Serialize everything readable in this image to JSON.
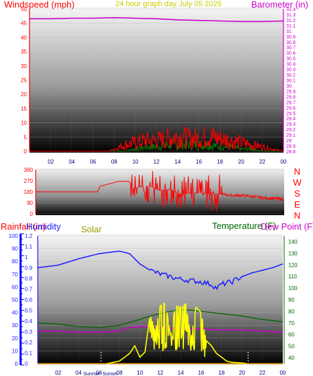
{
  "page_title": "24 hour graph day  July 05 2025",
  "colors": {
    "windspeed": "#ff0000",
    "gust": "#008000",
    "barometer": "#cc00cc",
    "title": "#cccc00",
    "direction": "#ff0000",
    "rainfall": "#0000ff",
    "humidity": "#1a1aff",
    "solar": "#ffff00",
    "temperature": "#006600",
    "dewpoint": "#cc00cc",
    "axis_blue": "#0000ff"
  },
  "chart_data": [
    {
      "type": "line",
      "title": "24 hour graph day  July 05 2025",
      "left_label": "Windspeed (mph)",
      "right_label": "Barometer (in)",
      "x_ticks": [
        "02",
        "04",
        "06",
        "08",
        "10",
        "12",
        "14",
        "16",
        "18",
        "20",
        "22",
        "00"
      ],
      "left_ticks": [
        "0",
        "5",
        "10",
        "15",
        "20",
        "25",
        "30",
        "35",
        "40",
        "45",
        "50"
      ],
      "right_ticks": [
        "28.8",
        "28.9",
        "29",
        "29.1",
        "29.2",
        "29.3",
        "29.4",
        "29.5",
        "29.6",
        "29.7",
        "29.8",
        "29.9",
        "30",
        "30.1",
        "30.2",
        "30.3",
        "30.4",
        "30.5",
        "30.6",
        "30.7",
        "30.8",
        "30.9",
        "31",
        "31.1",
        "31.2",
        "31.3",
        "31.4"
      ],
      "ylim_left": [
        0,
        50
      ],
      "ylim_right": [
        28.8,
        31.4
      ],
      "series": [
        {
          "name": "Barometer",
          "axis": "right",
          "x": [
            0,
            2,
            4,
            6,
            8,
            10,
            12,
            14,
            16,
            18,
            20,
            22,
            24
          ],
          "values": [
            31.22,
            31.22,
            31.23,
            31.23,
            31.24,
            31.23,
            31.22,
            31.2,
            31.19,
            31.18,
            31.17,
            31.17,
            31.18
          ]
        },
        {
          "name": "Windspeed",
          "axis": "left",
          "x": [
            0,
            7.5,
            8,
            9,
            10,
            11,
            12,
            13,
            14,
            15,
            16,
            17,
            18,
            19,
            20,
            21,
            22,
            23,
            24
          ],
          "values": [
            0,
            0,
            1,
            3,
            4,
            5,
            5,
            6,
            7,
            6,
            6,
            7,
            6,
            5,
            4,
            3,
            2,
            1,
            0
          ]
        },
        {
          "name": "Gust",
          "axis": "left",
          "x": [
            0,
            9,
            10,
            11,
            12,
            13,
            14,
            15,
            16,
            17,
            18,
            19,
            20,
            21,
            22,
            24
          ],
          "values": [
            0,
            0,
            1,
            2,
            2,
            3,
            3,
            3,
            3,
            3,
            2,
            2,
            1,
            1,
            0,
            0
          ]
        }
      ]
    },
    {
      "type": "line",
      "title": "",
      "left_ticks": [
        "0",
        "90",
        "180",
        "270",
        "360"
      ],
      "right_ticks": [
        "N",
        "W",
        "S",
        "E",
        "N"
      ],
      "ylim": [
        0,
        360
      ],
      "series": [
        {
          "name": "Wind direction",
          "x": [
            0,
            6,
            6.2,
            8,
            9,
            9.5,
            10,
            11,
            12,
            13,
            14,
            15,
            16,
            17,
            18,
            19,
            20,
            21,
            22,
            23,
            24
          ],
          "values": [
            180,
            180,
            225,
            265,
            265,
            200,
            220,
            230,
            190,
            200,
            160,
            170,
            170,
            170,
            160,
            150,
            150,
            140,
            130,
            125,
            120
          ]
        }
      ]
    },
    {
      "type": "line",
      "title": "",
      "labels": [
        "Rainfall (in)",
        "Humidity",
        "Solar",
        "Temperature (F)",
        "Dew Point (F)"
      ],
      "x_ticks": [
        "02",
        "04",
        "06",
        "08",
        "10",
        "12",
        "14",
        "16",
        "18",
        "20",
        "22",
        "00"
      ],
      "sun_labels": [
        "Sunrise",
        "Sunset"
      ],
      "rain_ticks": [
        "0",
        "0.1",
        "0.2",
        "0.3",
        "0.4",
        "0.5",
        "0.6",
        "0.7",
        "0.8",
        "0.9",
        "1",
        "1.1",
        "1.2"
      ],
      "humidity_ticks": [
        "0",
        "10",
        "20",
        "30",
        "40",
        "50",
        "60",
        "70",
        "80",
        "90",
        "100"
      ],
      "temp_ticks": [
        "40",
        "50",
        "60",
        "70",
        "80",
        "90",
        "100",
        "110",
        "120",
        "130",
        "140"
      ],
      "ylim_rain": [
        0,
        1.2
      ],
      "ylim_humidity": [
        0,
        100
      ],
      "ylim_temp": [
        35,
        145
      ],
      "series": [
        {
          "name": "Humidity",
          "axis": "humidity",
          "x": [
            0,
            2,
            4,
            6,
            8,
            9,
            10,
            11,
            12,
            13,
            14,
            15,
            16,
            17,
            17.5,
            18,
            19,
            20,
            21,
            22,
            23,
            24
          ],
          "values": [
            75,
            77,
            82,
            86,
            88,
            86,
            78,
            73,
            70,
            68,
            66,
            65,
            64,
            62,
            59,
            62,
            64,
            68,
            71,
            73,
            75,
            78
          ]
        },
        {
          "name": "Temperature (F)",
          "axis": "temp",
          "x": [
            0,
            2,
            4,
            6,
            8,
            10,
            11,
            12,
            13,
            14,
            15,
            16,
            17,
            18,
            19,
            20,
            22,
            24
          ],
          "values": [
            70,
            69,
            67,
            66,
            68,
            73,
            76,
            78,
            80,
            81,
            81,
            80,
            79,
            78,
            77,
            76,
            73,
            71
          ]
        },
        {
          "name": "Dew Point (F)",
          "axis": "temp",
          "x": [
            0,
            2,
            4,
            6,
            8,
            9,
            10,
            12,
            14,
            16,
            18,
            20,
            22,
            24
          ],
          "values": [
            63,
            63,
            62,
            62,
            63,
            66,
            67,
            66,
            65,
            65,
            64,
            64,
            63,
            62
          ]
        },
        {
          "name": "Solar",
          "axis": "humidity",
          "x": [
            6.8,
            8,
            9,
            9.5,
            10,
            10.5,
            11,
            11.5,
            12,
            12.5,
            13,
            13.5,
            14,
            14.5,
            15,
            15.5,
            16,
            16.5,
            17,
            17.5,
            18,
            18.5,
            19,
            20,
            20.5
          ],
          "values": [
            0,
            2,
            8,
            14,
            5,
            9,
            38,
            26,
            45,
            48,
            22,
            46,
            44,
            47,
            20,
            44,
            40,
            18,
            14,
            8,
            5,
            2,
            1,
            0.5,
            0
          ]
        },
        {
          "name": "Rainfall (in)",
          "axis": "rain",
          "x": [
            0,
            24
          ],
          "values": [
            0,
            0
          ]
        }
      ]
    }
  ]
}
